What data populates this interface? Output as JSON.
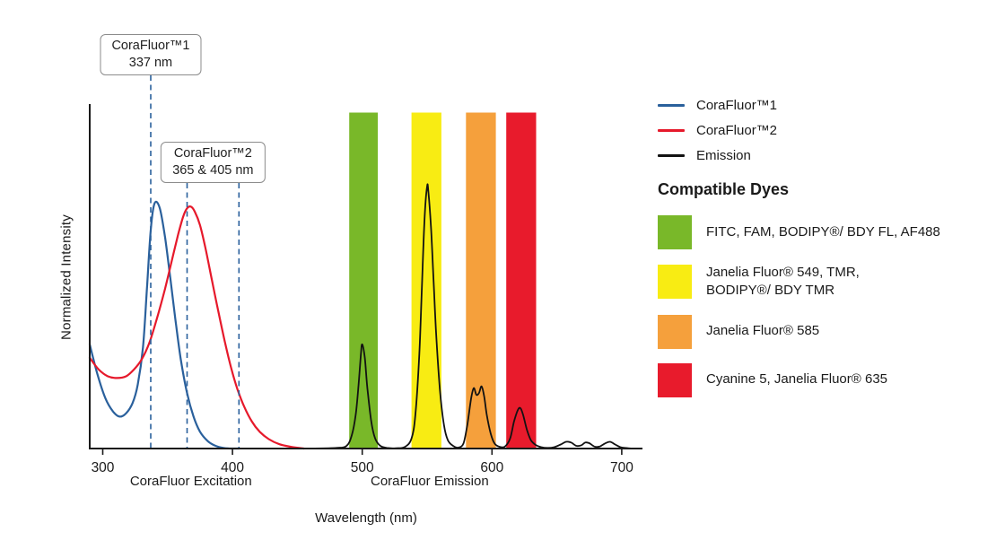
{
  "chart_data": {
    "type": "line",
    "title": "",
    "xlabel": "Wavelength (nm)",
    "ylabel": "Normalized Intensity",
    "xlim": [
      290,
      716
    ],
    "ylim": [
      0,
      1.02
    ],
    "x_ticks": [
      300,
      400,
      500,
      600,
      700
    ],
    "grid": false,
    "legend_position": "right",
    "series": [
      {
        "name": "CoraFluor™1",
        "color": "#2a609c",
        "x": [
          290,
          296,
          302,
          308,
          313,
          318,
          323,
          327,
          331,
          334,
          337,
          340,
          344,
          348,
          352,
          356,
          360,
          365,
          370,
          375,
          381,
          387,
          393,
          399,
          405
        ],
        "y": [
          0.31,
          0.22,
          0.15,
          0.11,
          0.095,
          0.105,
          0.135,
          0.19,
          0.3,
          0.47,
          0.65,
          0.73,
          0.715,
          0.63,
          0.51,
          0.385,
          0.27,
          0.165,
          0.095,
          0.05,
          0.022,
          0.008,
          0.002,
          0.0,
          0.0
        ]
      },
      {
        "name": "CoraFluor™2",
        "color": "#e6192b",
        "x": [
          290,
          297,
          304,
          311,
          318,
          324,
          330,
          336,
          342,
          348,
          353,
          358,
          362,
          365,
          368,
          371,
          375,
          379,
          384,
          389,
          394,
          399,
          404,
          409,
          415,
          421,
          428,
          436,
          445,
          455
        ],
        "y": [
          0.27,
          0.235,
          0.215,
          0.21,
          0.215,
          0.235,
          0.265,
          0.315,
          0.39,
          0.475,
          0.555,
          0.635,
          0.69,
          0.715,
          0.72,
          0.705,
          0.665,
          0.6,
          0.505,
          0.41,
          0.32,
          0.24,
          0.175,
          0.125,
          0.08,
          0.05,
          0.028,
          0.013,
          0.005,
          0.0
        ]
      },
      {
        "name": "Emission",
        "color": "#121212",
        "x": [
          460,
          480,
          488,
          492,
          495,
          497,
          499,
          500,
          502,
          504,
          507,
          510,
          514,
          519,
          526,
          533,
          538,
          541,
          544,
          546,
          548,
          550,
          551,
          553,
          555,
          557,
          560,
          563,
          566,
          570,
          574,
          578,
          581,
          584,
          586,
          588,
          590,
          592,
          594,
          596,
          599,
          602,
          606,
          610,
          614,
          617,
          620,
          622,
          624,
          627,
          630,
          634,
          638,
          643,
          648,
          653,
          657,
          661,
          665,
          669,
          672,
          675,
          679,
          683,
          687,
          691,
          695,
          699,
          703,
          708
        ],
        "y": [
          0,
          0.002,
          0.008,
          0.04,
          0.1,
          0.18,
          0.28,
          0.31,
          0.27,
          0.18,
          0.08,
          0.03,
          0.008,
          0.002,
          0.001,
          0.005,
          0.03,
          0.1,
          0.28,
          0.48,
          0.68,
          0.78,
          0.765,
          0.66,
          0.5,
          0.34,
          0.17,
          0.07,
          0.025,
          0.008,
          0.003,
          0.015,
          0.07,
          0.15,
          0.18,
          0.16,
          0.165,
          0.185,
          0.155,
          0.1,
          0.045,
          0.015,
          0.005,
          0.006,
          0.03,
          0.08,
          0.115,
          0.12,
          0.1,
          0.055,
          0.025,
          0.01,
          0.004,
          0.002,
          0.004,
          0.012,
          0.02,
          0.018,
          0.008,
          0.01,
          0.018,
          0.016,
          0.006,
          0.006,
          0.015,
          0.02,
          0.012,
          0.004,
          0.002,
          0
        ]
      }
    ],
    "filter_bands": [
      {
        "name": "green-filter-band",
        "color": "#79b829",
        "x0": 490,
        "x1": 512,
        "height": 1.0
      },
      {
        "name": "yellow-filter-band",
        "color": "#f8ec13",
        "x0": 538,
        "x1": 561,
        "height": 1.0
      },
      {
        "name": "orange-filter-band",
        "color": "#f5a03c",
        "x0": 580,
        "x1": 603,
        "height": 1.0
      },
      {
        "name": "red-filter-band",
        "color": "#e81b2c",
        "x0": 611,
        "x1": 634,
        "height": 1.0
      }
    ],
    "dashed_markers": [
      {
        "wavelength": 337,
        "callout": 1
      },
      {
        "wavelength": 365,
        "callout": 2
      },
      {
        "wavelength": 405,
        "callout": 2
      }
    ],
    "x_axis_notes": [
      {
        "text": "CoraFluor Excitation",
        "center_nm": 368
      },
      {
        "text": "CoraFluor Emission",
        "center_nm": 552
      }
    ]
  },
  "annotations": {
    "callout1": {
      "line1": "CoraFluor™1",
      "line2": "337 nm"
    },
    "callout2": {
      "line1": "CoraFluor™2",
      "line2": "365 & 405 nm"
    }
  },
  "legend": {
    "series": [
      {
        "label": "CoraFluor™1",
        "color": "#2a609c"
      },
      {
        "label": "CoraFluor™2",
        "color": "#e6192b"
      },
      {
        "label": "Emission",
        "color": "#121212"
      }
    ],
    "compatible_dyes_title": "Compatible Dyes",
    "dyes": [
      {
        "color": "#79b829",
        "label": "FITC, FAM, BODIPY®/ BDY FL, AF488"
      },
      {
        "color": "#f8ec13",
        "label": "Janelia Fluor® 549, TMR,\nBODIPY®/ BDY TMR"
      },
      {
        "color": "#f5a03c",
        "label": "Janelia Fluor® 585"
      },
      {
        "color": "#e81b2c",
        "label": "Cyanine 5, Janelia Fluor® 635"
      }
    ]
  },
  "colors": {
    "dashed_marker": "#2a609c",
    "axis": "#1a1a1a",
    "background": "#ffffff"
  }
}
